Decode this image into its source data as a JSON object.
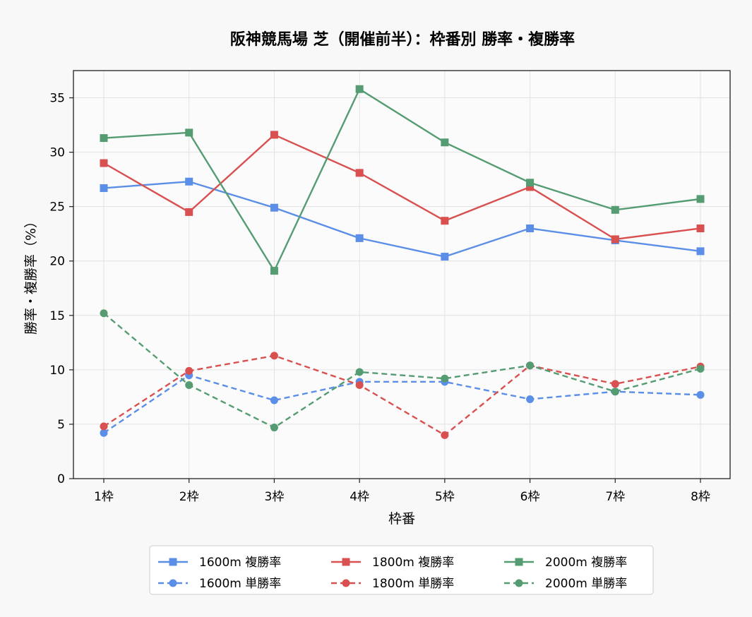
{
  "chart_data": {
    "type": "line",
    "title": "阪神競馬場 芝（開催前半）：枠番別 勝率・複勝率",
    "xlabel": "枠番",
    "ylabel": "勝率・複勝率（%）",
    "categories": [
      "1枠",
      "2枠",
      "3枠",
      "4枠",
      "5枠",
      "6枠",
      "7枠",
      "8枠"
    ],
    "ylim": [
      0,
      37.5
    ],
    "yticks": [
      0,
      5,
      10,
      15,
      20,
      25,
      30,
      35
    ],
    "grid": true,
    "legend_position": "bottom-center",
    "series": [
      {
        "name": "1600m 複勝率",
        "color": "#5b8ee6",
        "style": "solid",
        "marker": "square",
        "values": [
          26.7,
          27.3,
          24.9,
          22.1,
          20.4,
          23.0,
          21.9,
          20.9
        ]
      },
      {
        "name": "1600m 単勝率",
        "color": "#5b8ee6",
        "style": "dashed",
        "marker": "circle",
        "values": [
          4.2,
          9.5,
          7.2,
          8.9,
          8.9,
          7.3,
          8.0,
          7.7
        ]
      },
      {
        "name": "1800m 複勝率",
        "color": "#d95050",
        "style": "solid",
        "marker": "square",
        "values": [
          29.0,
          24.5,
          31.6,
          28.1,
          23.7,
          26.8,
          22.0,
          23.0
        ]
      },
      {
        "name": "1800m 単勝率",
        "color": "#d95050",
        "style": "dashed",
        "marker": "circle",
        "values": [
          4.8,
          9.9,
          11.3,
          8.6,
          4.0,
          10.4,
          8.7,
          10.3
        ]
      },
      {
        "name": "2000m 複勝率",
        "color": "#559c72",
        "style": "solid",
        "marker": "square",
        "values": [
          31.3,
          31.8,
          19.1,
          35.8,
          30.9,
          27.2,
          24.7,
          25.7
        ]
      },
      {
        "name": "2000m 単勝率",
        "color": "#559c72",
        "style": "dashed",
        "marker": "circle",
        "values": [
          15.2,
          8.6,
          4.7,
          9.8,
          9.2,
          10.4,
          8.0,
          10.1
        ]
      }
    ]
  }
}
